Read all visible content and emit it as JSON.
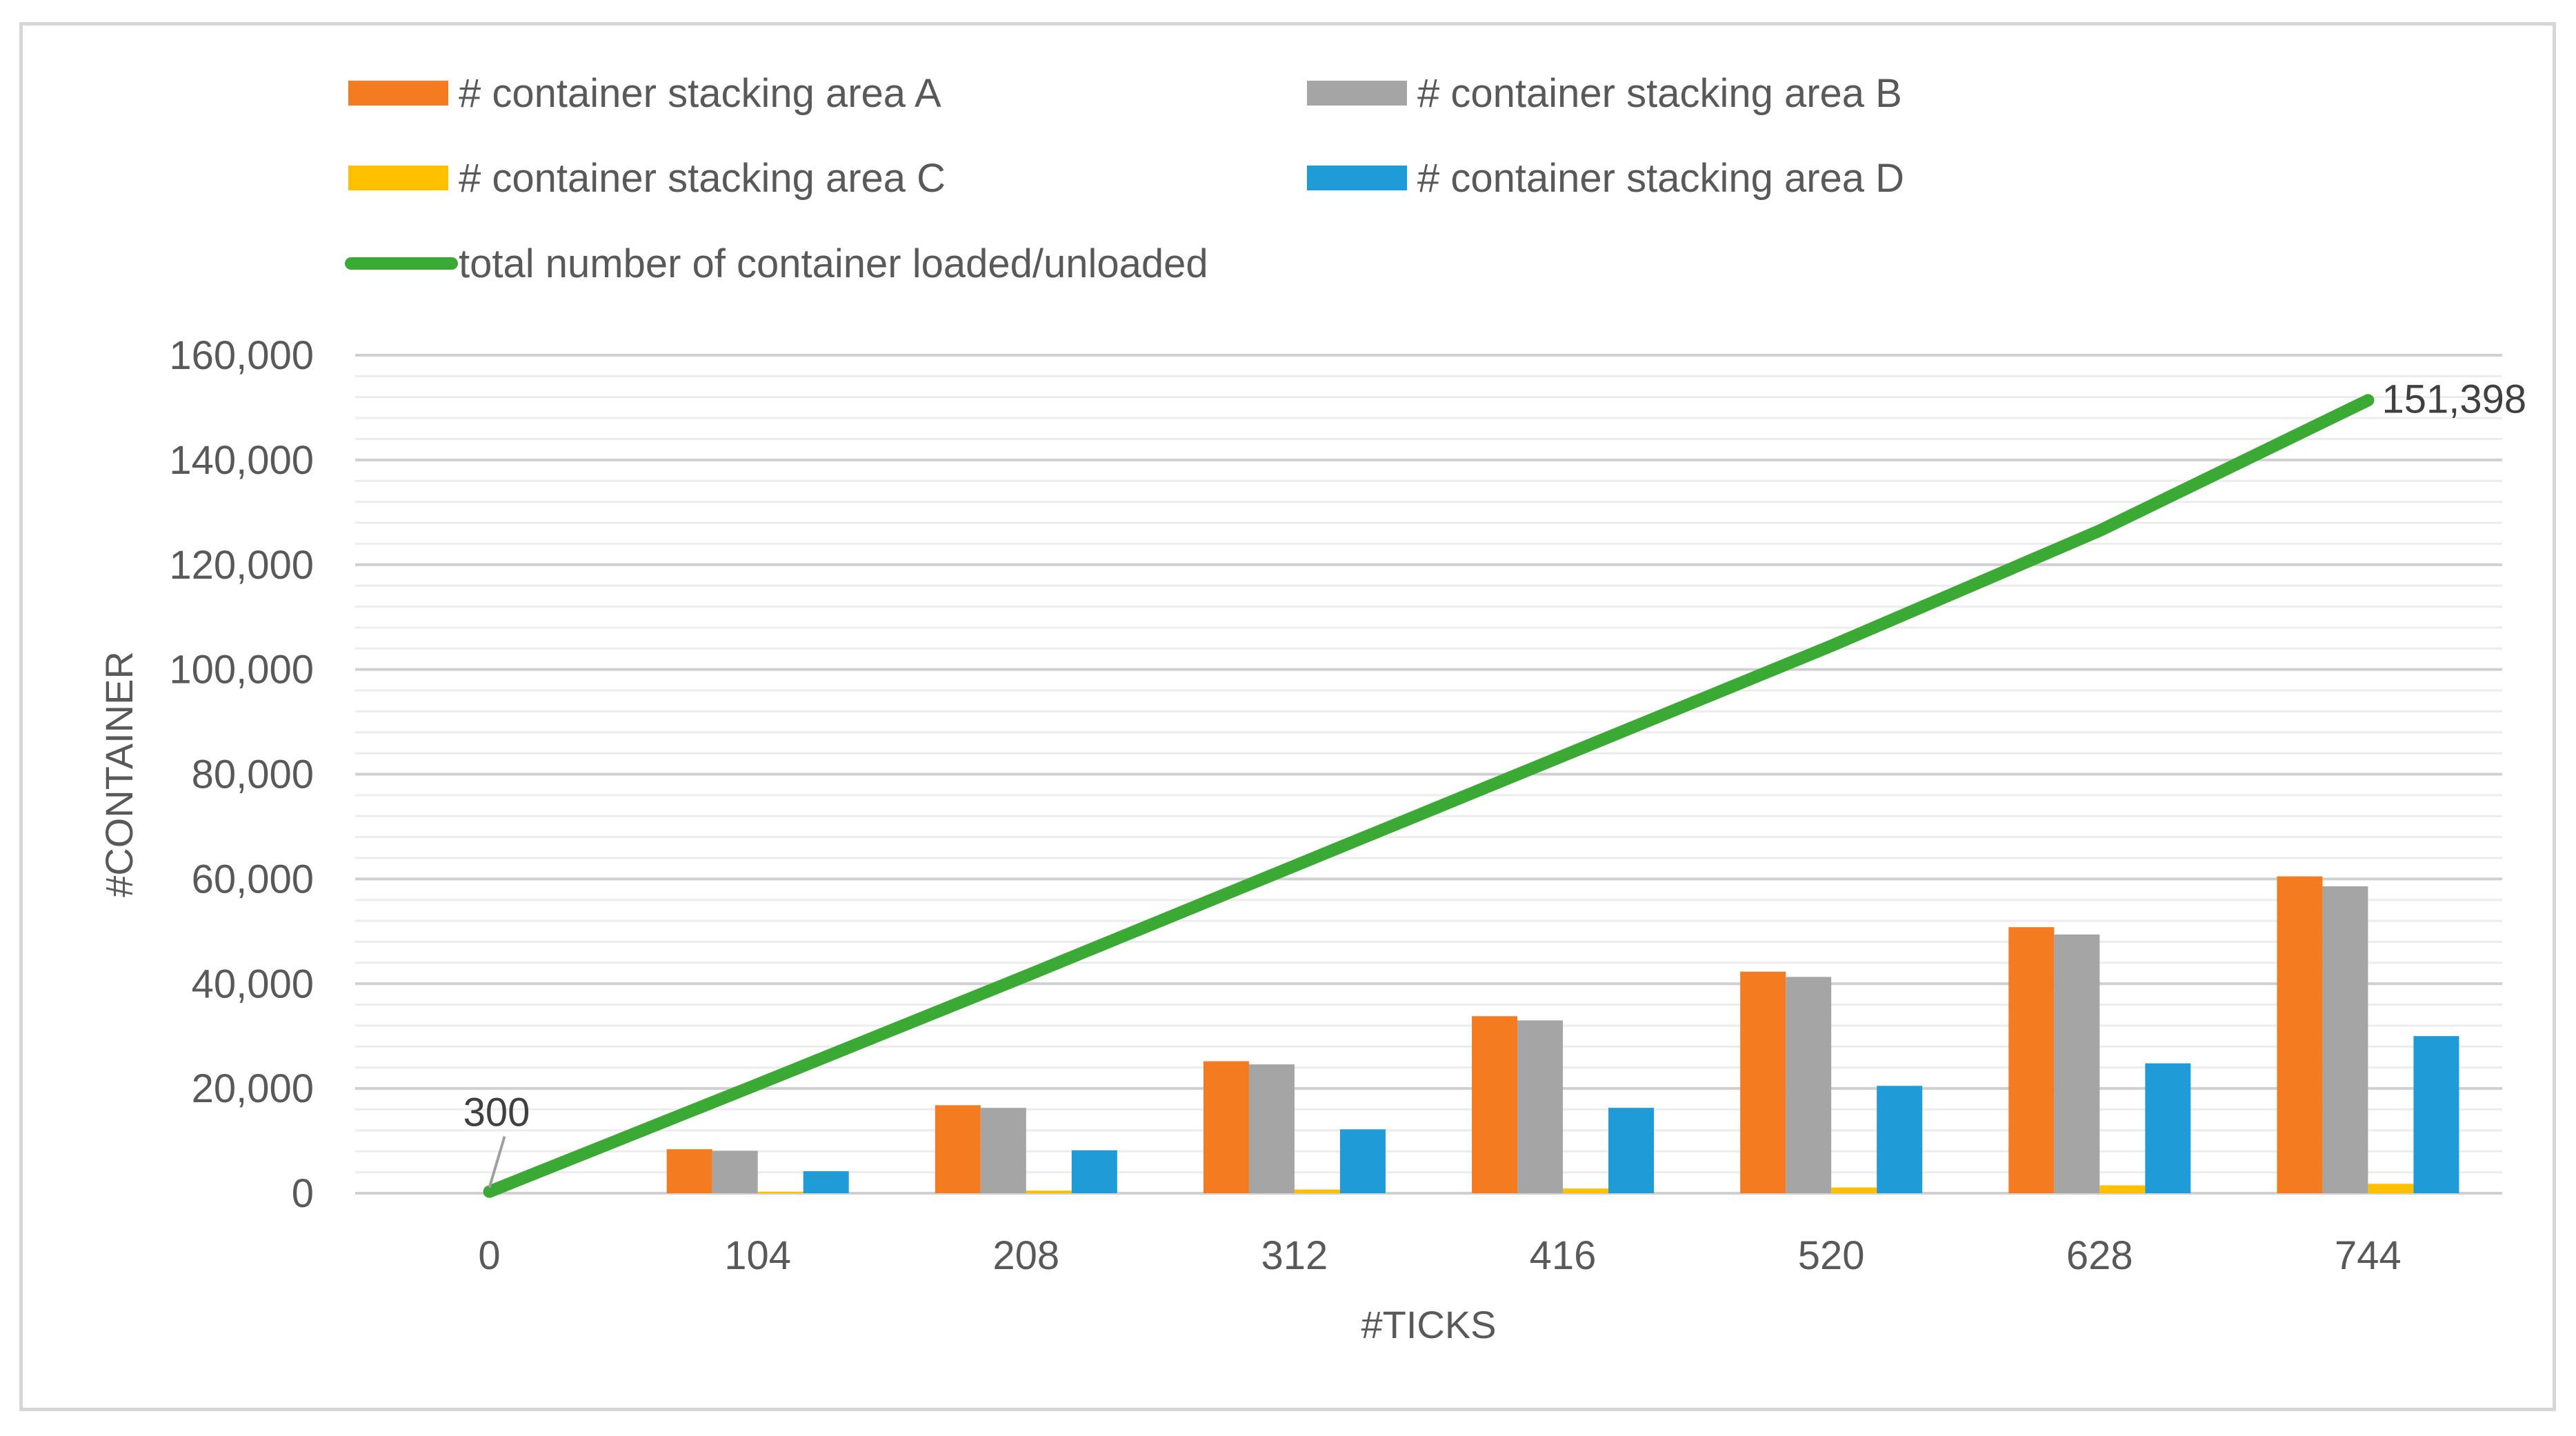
{
  "chart_data": {
    "type": "bar",
    "title": "",
    "xlabel": "#TICKS",
    "ylabel": "#CONTAINER",
    "categories": [
      "0",
      "104",
      "208",
      "312",
      "416",
      "520",
      "628",
      "744"
    ],
    "ylim": [
      0,
      160000
    ],
    "yticks": [
      "0",
      "20,000",
      "40,000",
      "60,000",
      "80,000",
      "100,000",
      "120,000",
      "140,000",
      "160,000"
    ],
    "grid": true,
    "legend_position": "top",
    "series": [
      {
        "name": "# container stacking area A",
        "kind": "bar",
        "color": "#f47b20",
        "values": [
          0,
          8400,
          16800,
          25200,
          33800,
          42300,
          50800,
          60500
        ]
      },
      {
        "name": "# container stacking area B",
        "kind": "bar",
        "color": "#a5a5a5",
        "values": [
          0,
          8100,
          16300,
          24600,
          33000,
          41300,
          49400,
          58600
        ]
      },
      {
        "name": "# container stacking area C",
        "kind": "bar",
        "color": "#ffc000",
        "values": [
          0,
          300,
          500,
          700,
          900,
          1100,
          1500,
          1800
        ]
      },
      {
        "name": "# container stacking area D",
        "kind": "bar",
        "color": "#1f9bd7",
        "values": [
          0,
          4200,
          8200,
          12200,
          16300,
          20500,
          24800,
          30000
        ]
      },
      {
        "name": "total number of container loaded/unloaded",
        "kind": "line",
        "color": "#3aaa35",
        "values": [
          300,
          20800,
          41500,
          62500,
          83500,
          104500,
          126500,
          151398
        ]
      }
    ],
    "annotations": [
      {
        "category": "0",
        "series": "total number of container loaded/unloaded",
        "text": "300"
      },
      {
        "category": "744",
        "series": "total number of container loaded/unloaded",
        "text": "151,398"
      }
    ]
  }
}
